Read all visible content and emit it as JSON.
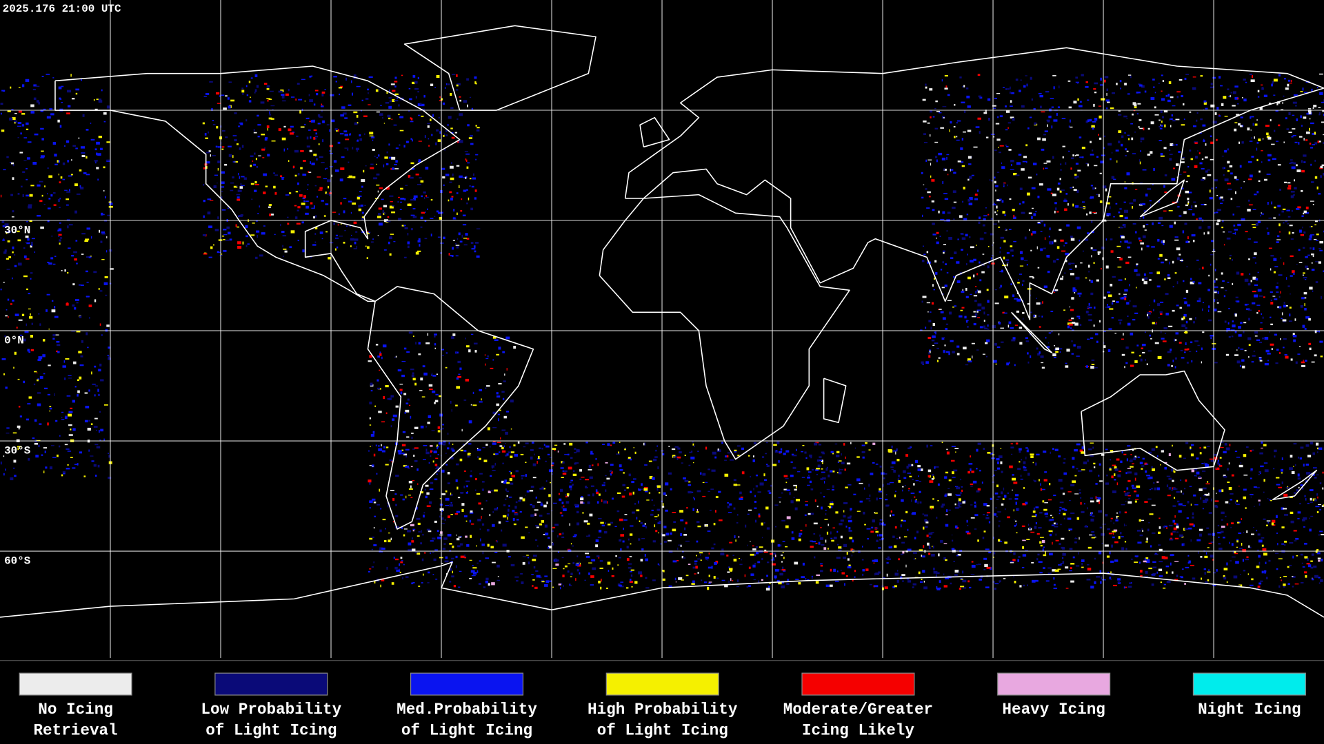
{
  "timestamp": "2025.176 21:00 UTC",
  "latitude_labels": [
    "30°N",
    "0°N",
    "30°S",
    "60°S"
  ],
  "legend": [
    {
      "lines": [
        "No Icing",
        "Retrieval"
      ],
      "color": "#ececec"
    },
    {
      "lines": [
        "Low Probability",
        "of Light Icing"
      ],
      "color": "#0a0a78"
    },
    {
      "lines": [
        "Med.Probability",
        "of Light Icing"
      ],
      "color": "#0a14f0"
    },
    {
      "lines": [
        "High Probability",
        "of Light Icing"
      ],
      "color": "#f5f000"
    },
    {
      "lines": [
        "Moderate/Greater",
        "Icing Likely"
      ],
      "color": "#f50000"
    },
    {
      "lines": [
        "Heavy Icing"
      ],
      "color": "#e8a8e0"
    },
    {
      "lines": [
        "Night Icing"
      ],
      "color": "#00ecec"
    }
  ]
}
